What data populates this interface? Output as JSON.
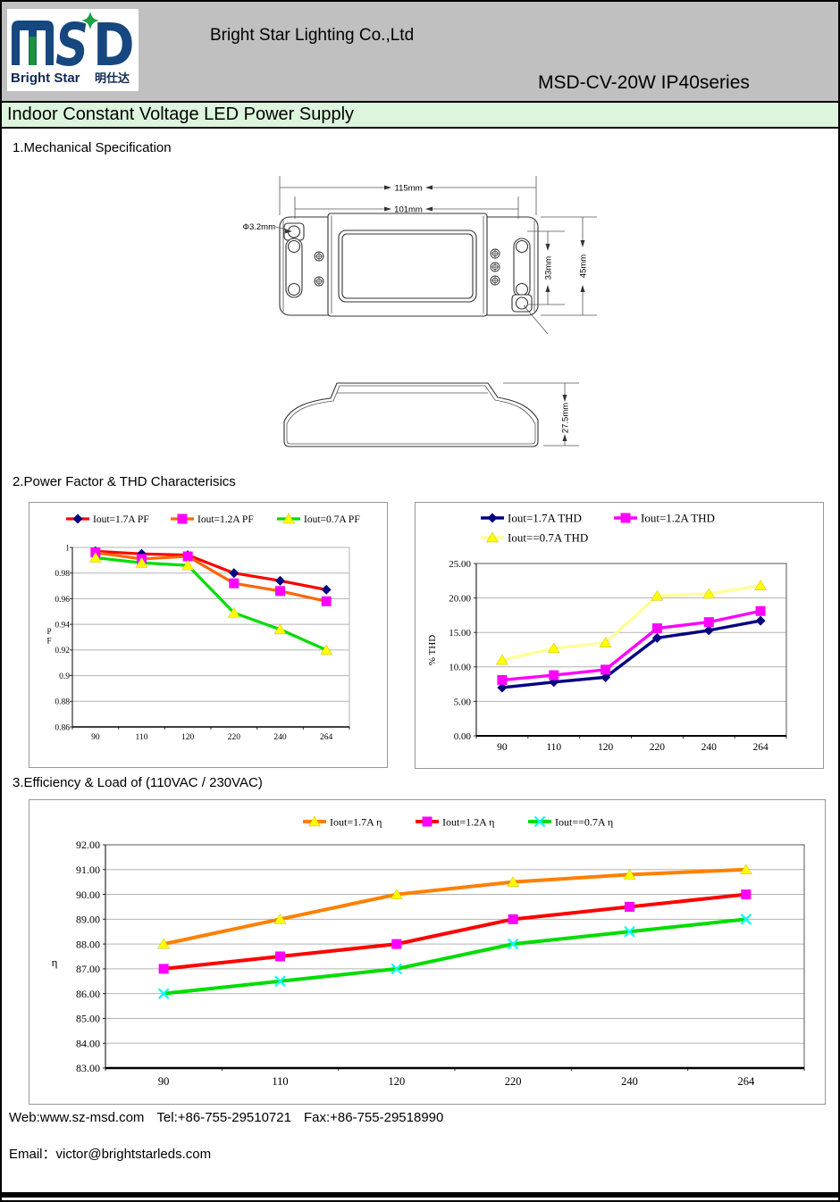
{
  "header": {
    "company": "Bright Star Lighting Co.,Ltd",
    "model": "MSD-CV-20W IP40series",
    "banner": "Indoor Constant Voltage LED Power Supply",
    "logo": {
      "monogram": "MSD",
      "s": "S",
      "d": "D",
      "brand_en": "Bright Star",
      "brand_cn": "明仕达"
    }
  },
  "sections": {
    "mechanical": "1.Mechanical Specification",
    "pf_thd": "2.Power Factor & THD Characterisics",
    "efficiency": "3.Efficiency & Load of (110VAC / 230VAC)"
  },
  "drawing": {
    "dim_width_outer": "115mm",
    "dim_width_inner": "101mm",
    "dim_hole": "Φ3.2mm",
    "dim_hole_pitch": "33mm",
    "dim_height": "45mm",
    "dim_depth": "27.5mm"
  },
  "footer": {
    "web": "Web:www.sz-msd.com",
    "tel": "Tel:+86-755-29510721",
    "fax": "Fax:+86-755-29518990",
    "email": "Email：victor@brightstarleds.com"
  },
  "chart_data": [
    {
      "id": "pf",
      "type": "line",
      "title": "",
      "categories": [
        "90",
        "110",
        "120",
        "220",
        "240",
        "264"
      ],
      "xlabel": "",
      "ylabel": "P F",
      "ylim": [
        0.86,
        1.0
      ],
      "yticks": [
        "1",
        "0.98",
        "0.96",
        "0.94",
        "0.92",
        "0.9",
        "0.88",
        "0.86"
      ],
      "grid": true,
      "legend_position": "top",
      "series": [
        {
          "name": "Iout=1.7A PF",
          "line_color": "#ff0000",
          "marker": "diamond",
          "marker_color": "#000080",
          "values": [
            0.997,
            0.995,
            0.994,
            0.98,
            0.974,
            0.967
          ]
        },
        {
          "name": "Iout=1.2A PF",
          "line_color": "#ff6600",
          "marker": "square",
          "marker_color": "#ff00ff",
          "values": [
            0.996,
            0.991,
            0.993,
            0.972,
            0.966,
            0.958
          ]
        },
        {
          "name": "Iout=0.7A PF",
          "line_color": "#00dd00",
          "marker": "triangle",
          "marker_color": "#ffff00",
          "values": [
            0.992,
            0.988,
            0.986,
            0.949,
            0.936,
            0.92
          ]
        }
      ]
    },
    {
      "id": "thd",
      "type": "line",
      "title": "",
      "categories": [
        "90",
        "110",
        "120",
        "220",
        "240",
        "264"
      ],
      "xlabel": "",
      "ylabel": "% THD",
      "ylim": [
        0,
        25
      ],
      "yticks": [
        "25.00",
        "20.00",
        "15.00",
        "10.00",
        "5.00",
        "0.00"
      ],
      "grid": true,
      "legend_position": "top",
      "series": [
        {
          "name": "Iout=1.7A THD",
          "line_color": "#000080",
          "marker": "diamond",
          "marker_color": "#000080",
          "values": [
            7.0,
            7.8,
            8.5,
            14.2,
            15.3,
            16.7
          ]
        },
        {
          "name": "Iout=1.2A THD",
          "line_color": "#ff00ff",
          "marker": "square",
          "marker_color": "#ff00ff",
          "values": [
            8.1,
            8.8,
            9.6,
            15.6,
            16.5,
            18.1
          ]
        },
        {
          "name": "Iout==0.7A THD",
          "line_color": "#ffff99",
          "marker": "triangle",
          "marker_color": "#ffff00",
          "values": [
            11.0,
            12.7,
            13.5,
            20.3,
            20.6,
            21.8
          ]
        }
      ]
    },
    {
      "id": "eff",
      "type": "line",
      "title": "",
      "categories": [
        "90",
        "110",
        "120",
        "220",
        "240",
        "264"
      ],
      "xlabel": "",
      "ylabel": "η",
      "ylim": [
        83,
        92
      ],
      "yticks": [
        "92.00",
        "91.00",
        "90.00",
        "89.00",
        "88.00",
        "87.00",
        "86.00",
        "85.00",
        "84.00",
        "83.00"
      ],
      "grid": true,
      "legend_position": "top",
      "series": [
        {
          "name": "Iout=1.7A  η",
          "line_color": "#ff8000",
          "marker": "triangle",
          "marker_color": "#ffff00",
          "values": [
            88.0,
            89.0,
            90.0,
            90.5,
            90.8,
            91.0
          ]
        },
        {
          "name": "Iout=1.2A  η",
          "line_color": "#ff0000",
          "marker": "square",
          "marker_color": "#ff00ff",
          "values": [
            87.0,
            87.5,
            88.0,
            89.0,
            89.5,
            90.0
          ]
        },
        {
          "name": "Iout==0.7A  η",
          "line_color": "#00dd00",
          "marker": "x",
          "marker_color": "#00ffff",
          "values": [
            86.0,
            86.5,
            87.0,
            88.0,
            88.5,
            89.0
          ]
        }
      ]
    }
  ]
}
